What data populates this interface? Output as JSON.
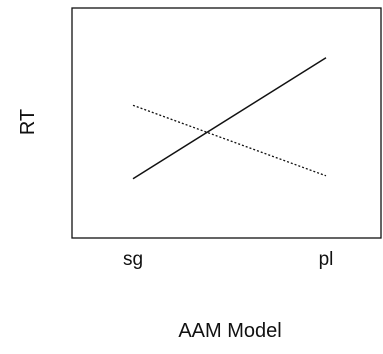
{
  "chart_data": {
    "type": "line",
    "categories": [
      "sg",
      "pl"
    ],
    "xlabel": "AAM Model",
    "ylabel": "RT",
    "y_ticks_shown": false,
    "grid": false,
    "legend": "none",
    "ylim": [
      0,
      1
    ],
    "series": [
      {
        "values": [
          0.12,
          0.96
        ],
        "style": "solid",
        "color": "#111111"
      },
      {
        "values": [
          0.63,
          0.14
        ],
        "style": "dotted",
        "color": "#111111"
      }
    ]
  }
}
